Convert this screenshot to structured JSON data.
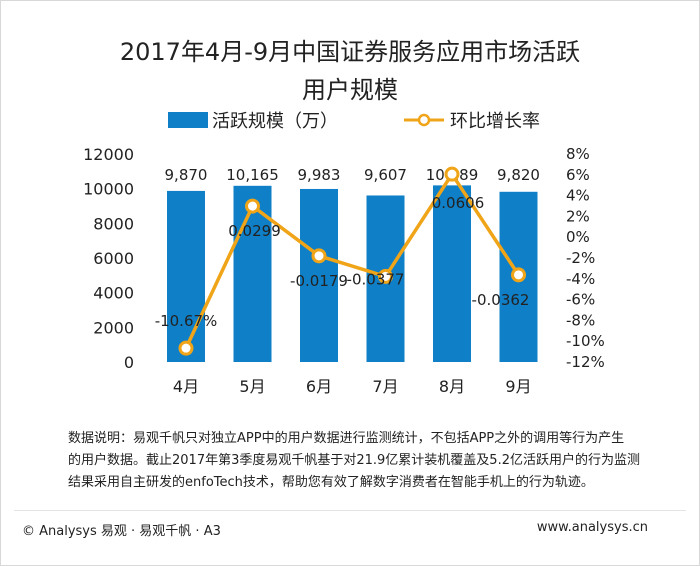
{
  "chart_data": {
    "type": "bar",
    "title_line1": "2017年4月-9月中国证券服务应用市场活跃",
    "title_line2": "用户规模",
    "categories": [
      "4月",
      "5月",
      "6月",
      "7月",
      "8月",
      "9月"
    ],
    "series": [
      {
        "name": "活跃规模（万）",
        "type": "bar",
        "axis": "left",
        "values": [
          9870,
          10165,
          9983,
          9607,
          10189,
          9820
        ],
        "labels": [
          "9,870",
          "10,165",
          "9,983",
          "9,607",
          "10,189",
          "9,820"
        ]
      },
      {
        "name": "环比增长率",
        "type": "line",
        "axis": "right",
        "values": [
          -0.1067,
          0.0299,
          -0.0179,
          -0.0377,
          0.0606,
          -0.0362
        ],
        "labels": [
          "-10.67%",
          "0.0299",
          "-0.0179",
          "-0.0377",
          "0.0606",
          "-0.0362"
        ]
      }
    ],
    "y_left": {
      "min": 0,
      "max": 12000,
      "ticks": [
        0,
        2000,
        4000,
        6000,
        8000,
        10000,
        12000
      ],
      "tick_labels": [
        "0",
        "2000",
        "4000",
        "6000",
        "8000",
        "10000",
        "12000"
      ]
    },
    "y_right": {
      "min": -0.12,
      "max": 0.08,
      "ticks": [
        -0.12,
        -0.1,
        -0.08,
        -0.06,
        -0.04,
        -0.02,
        0,
        0.02,
        0.04,
        0.06,
        0.08
      ],
      "tick_labels": [
        "-12%",
        "-10%",
        "-8%",
        "-6%",
        "-4%",
        "-2%",
        "0%",
        "2%",
        "4%",
        "6%",
        "8%"
      ]
    },
    "grid": false,
    "legend_position": "top"
  },
  "colors": {
    "bar": "#0f7fc7",
    "line": "#f0a418",
    "marker_fill": "#ffffff",
    "text": "#222222"
  },
  "note": {
    "line1": "数据说明：易观千帆只对独立APP中的用户数据进行监测统计，不包括APP之外的调用等行为产生",
    "line2": "的用户数据。截止2017年第3季度易观千帆基于对21.9亿累计装机覆盖及5.2亿活跃用户的行为监测",
    "line3": "结果采用自主研发的enfoTech技术，帮助您有效了解数字消费者在智能手机上的行为轨迹。"
  },
  "footer": {
    "left": "© Analysys 易观 · 易观千帆 · A3",
    "right": "www.analysys.cn"
  }
}
